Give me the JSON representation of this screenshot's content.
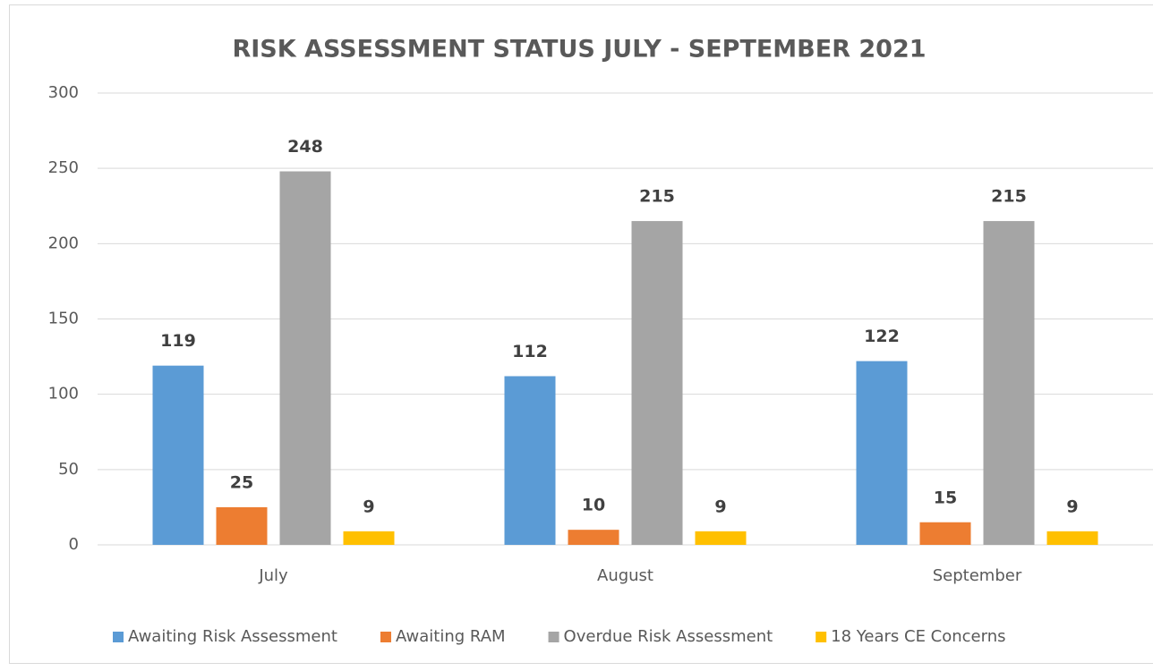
{
  "chart_data": {
    "type": "bar",
    "title": "RISK ASSESSMENT STATUS JULY - SEPTEMBER 2021",
    "categories": [
      "July",
      "August",
      "September"
    ],
    "series": [
      {
        "name": "Awaiting Risk Assessment",
        "color": "#5b9bd5",
        "values": [
          119,
          112,
          122
        ]
      },
      {
        "name": "Awaiting RAM",
        "color": "#ed7d31",
        "values": [
          25,
          10,
          15
        ]
      },
      {
        "name": "Overdue Risk Assessment",
        "color": "#a5a5a5",
        "values": [
          248,
          215,
          215
        ]
      },
      {
        "name": "18 Years CE Concerns",
        "color": "#ffc000",
        "values": [
          9,
          9,
          9
        ]
      }
    ],
    "ylim": [
      0,
      300
    ],
    "yticks": [
      0,
      50,
      100,
      150,
      200,
      250,
      300
    ],
    "grid": true,
    "legend": "bottom"
  }
}
